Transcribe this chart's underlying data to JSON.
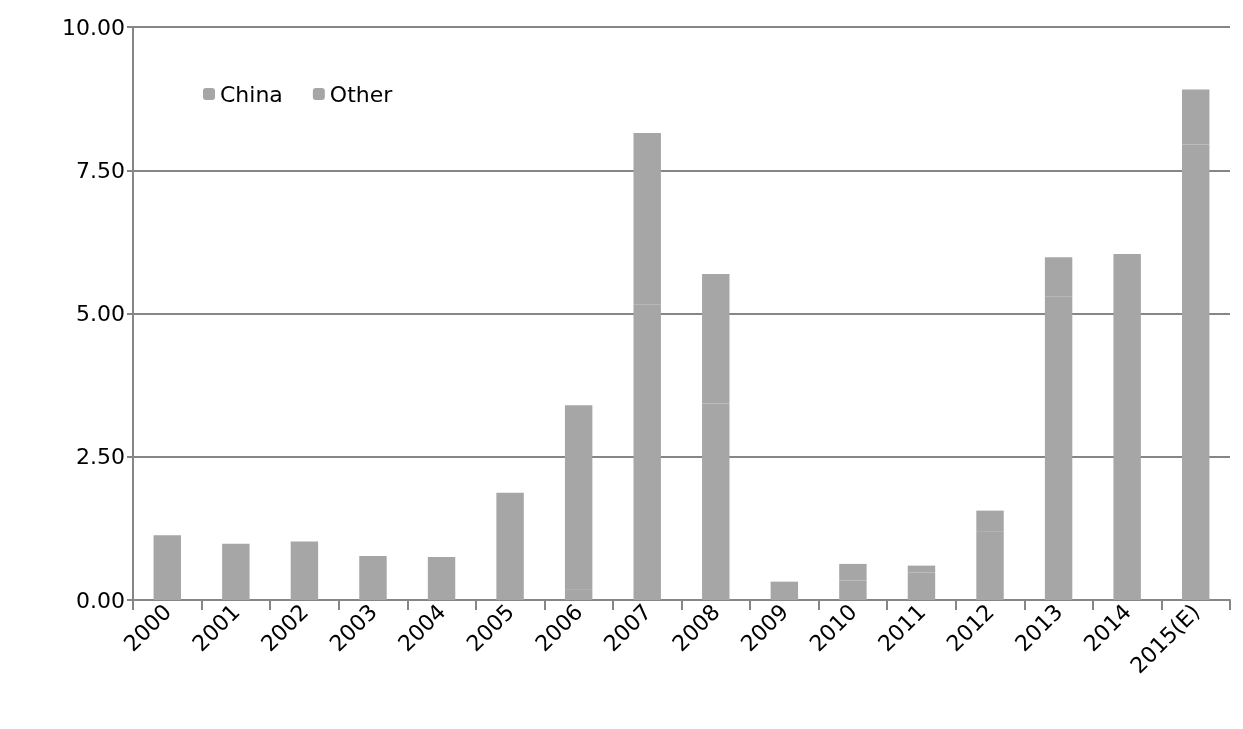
{
  "chart_data": {
    "type": "bar",
    "stacked": true,
    "categories": [
      "2000",
      "2001",
      "2002",
      "2003",
      "2004",
      "2005",
      "2006",
      "2007",
      "2008",
      "2009",
      "2010",
      "2011",
      "2012",
      "2013",
      "2014",
      "2015(E)"
    ],
    "series": [
      {
        "name": "China",
        "color": "#a6a6a6",
        "values": [
          1.13,
          0.98,
          1.02,
          0.77,
          0.75,
          1.87,
          0.19,
          5.16,
          3.43,
          0.32,
          0.34,
          0.48,
          1.19,
          5.3,
          5.08,
          7.95
        ]
      },
      {
        "name": "Other",
        "color": "#a6a6a6",
        "values": [
          null,
          null,
          null,
          null,
          null,
          null,
          3.21,
          2.99,
          2.26,
          null,
          0.29,
          0.12,
          0.37,
          0.68,
          0.96,
          0.96
        ]
      }
    ],
    "ylim": [
      0,
      10
    ],
    "yticks": [
      {
        "value": 0,
        "label": "0.00"
      },
      {
        "value": 2.5,
        "label": "2.50"
      },
      {
        "value": 5,
        "label": "5.00"
      },
      {
        "value": 7.5,
        "label": "7.50"
      },
      {
        "value": 10,
        "label": "10.00"
      }
    ],
    "grid": "y",
    "legend": "top left"
  }
}
